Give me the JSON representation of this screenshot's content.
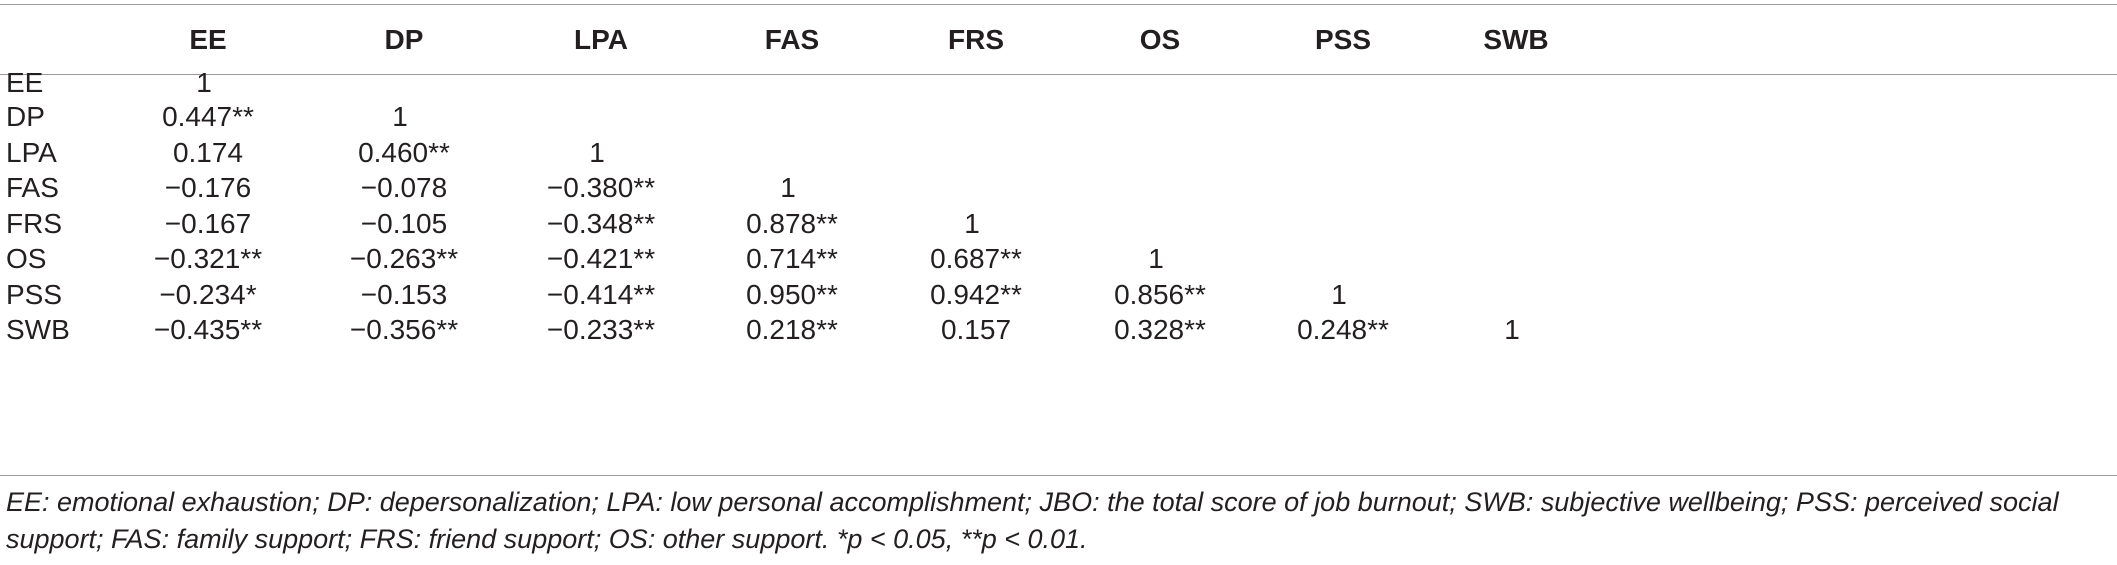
{
  "table": {
    "columns": [
      "",
      "EE",
      "DP",
      "LPA",
      "FAS",
      "FRS",
      "OS",
      "PSS",
      "SWB"
    ],
    "rows": [
      {
        "label": "EE",
        "values": [
          "1",
          "",
          "",
          "",
          "",
          "",
          "",
          ""
        ]
      },
      {
        "label": "DP",
        "values": [
          "0.447**",
          "1",
          "",
          "",
          "",
          "",
          "",
          ""
        ]
      },
      {
        "label": "LPA",
        "values": [
          "0.174",
          "0.460**",
          "1",
          "",
          "",
          "",
          "",
          ""
        ]
      },
      {
        "label": "FAS",
        "values": [
          "−0.176",
          "−0.078",
          "−0.380**",
          "1",
          "",
          "",
          "",
          ""
        ]
      },
      {
        "label": "FRS",
        "values": [
          "−0.167",
          "−0.105",
          "−0.348**",
          "0.878**",
          "1",
          "",
          "",
          ""
        ]
      },
      {
        "label": "OS",
        "values": [
          "−0.321**",
          "−0.263**",
          "−0.421**",
          "0.714**",
          "0.687**",
          "1",
          "",
          ""
        ]
      },
      {
        "label": "PSS",
        "values": [
          "−0.234*",
          "−0.153",
          "−0.414**",
          "0.950**",
          "0.942**",
          "0.856**",
          "1",
          ""
        ]
      },
      {
        "label": "SWB",
        "values": [
          "−0.435**",
          "−0.356**",
          "−0.233**",
          "0.218**",
          "0.157",
          "0.328**",
          "0.248**",
          "1"
        ]
      }
    ]
  },
  "footnote": "EE: emotional exhaustion; DP: depersonalization; LPA: low personal accomplishment; JBO: the total score of job burnout; SWB: subjective wellbeing; PSS: perceived social support; FAS: family support; FRS: friend support; OS: other support. *p < 0.05, **p < 0.01."
}
